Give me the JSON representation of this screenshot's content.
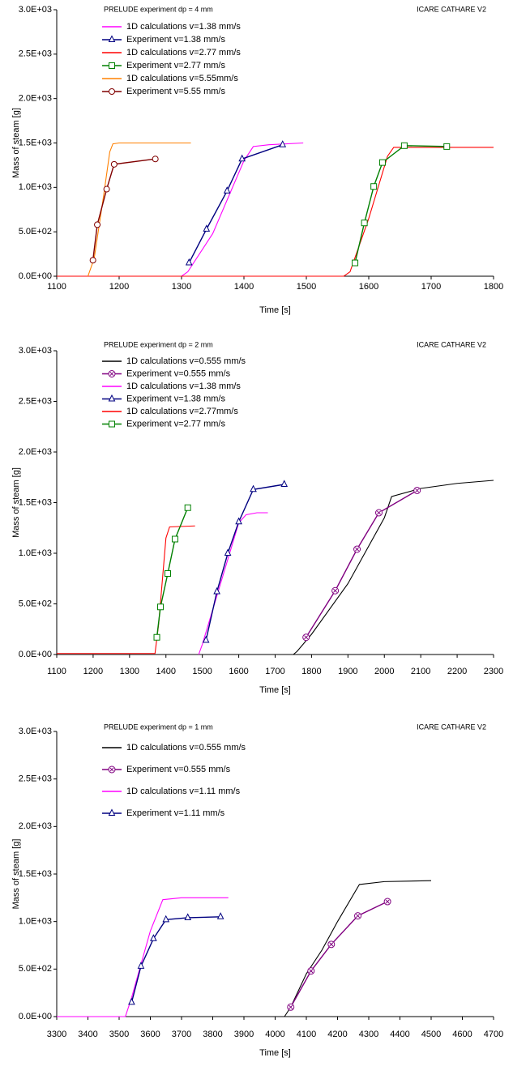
{
  "chart_data": [
    {
      "type": "line",
      "title": "PRELUDE experiment  dp = 4 mm",
      "annotation": "ICARE CATHARE V2",
      "x_label": "Time [s]",
      "y_label": "Mass of steam [g]",
      "xlim": [
        1100,
        1800
      ],
      "xticks": [
        1100,
        1200,
        1300,
        1400,
        1500,
        1600,
        1700,
        1800
      ],
      "ylim": [
        0,
        3000
      ],
      "yticks": [
        {
          "value": 0,
          "label": "0.0E+00"
        },
        {
          "value": 500,
          "label": "5.0E+02"
        },
        {
          "value": 1000,
          "label": "1.0E+03"
        },
        {
          "value": 1500,
          "label": "1.5E+03"
        },
        {
          "value": 2000,
          "label": "2.0E+03"
        },
        {
          "value": 2500,
          "label": "2.5E+03"
        },
        {
          "value": 3000,
          "label": "3.0E+03"
        }
      ],
      "series": [
        {
          "name": "1D calculations v=1.38 mm/s",
          "color": "#ff00ff",
          "x": [
            1300,
            1310,
            1350,
            1400,
            1415,
            1440,
            1495
          ],
          "values": [
            0,
            50,
            480,
            1300,
            1460,
            1480,
            1500
          ]
        },
        {
          "name": "Experiment v=1.38 mm/s",
          "color": "#000080",
          "marker": "triangle",
          "x": [
            1312,
            1340,
            1373,
            1397,
            1462
          ],
          "values": [
            150,
            530,
            960,
            1320,
            1480
          ]
        },
        {
          "name": "1D calculations v=2.77 mm/s",
          "color": "#ff0000",
          "x": [
            1100,
            1560,
            1570,
            1600,
            1630,
            1640,
            1800
          ],
          "values": [
            0,
            0,
            50,
            650,
            1350,
            1450,
            1450
          ]
        },
        {
          "name": "Experiment v=2.77 mm/s",
          "color": "#008000",
          "marker": "square",
          "x": [
            1578,
            1593,
            1608,
            1622,
            1657,
            1725
          ],
          "values": [
            150,
            600,
            1010,
            1280,
            1470,
            1460
          ]
        },
        {
          "name": "1D calculations v=5.55mm/s",
          "color": "#ff8000",
          "x": [
            1150,
            1160,
            1175,
            1185,
            1190,
            1200,
            1315
          ],
          "values": [
            0,
            200,
            900,
            1400,
            1490,
            1500,
            1500
          ]
        },
        {
          "name": "Experiment v=5.55 mm/s",
          "color": "#800000",
          "marker": "circle",
          "x": [
            1158,
            1165,
            1180,
            1192,
            1258
          ],
          "values": [
            180,
            580,
            980,
            1260,
            1320
          ]
        }
      ]
    },
    {
      "type": "line",
      "title": "PRELUDE experiment  dp = 2 mm",
      "annotation": "ICARE CATHARE V2",
      "x_label": "Time [s]",
      "y_label": "Mass of steam [g]",
      "xlim": [
        1100,
        2300
      ],
      "xticks": [
        1100,
        1200,
        1300,
        1400,
        1500,
        1600,
        1700,
        1800,
        1900,
        2000,
        2100,
        2200,
        2300
      ],
      "ylim": [
        0,
        3000
      ],
      "yticks": [
        {
          "value": 0,
          "label": "0.0E+00"
        },
        {
          "value": 500,
          "label": "5.0E+02"
        },
        {
          "value": 1000,
          "label": "1.0E+03"
        },
        {
          "value": 1500,
          "label": "1.5E+03"
        },
        {
          "value": 2000,
          "label": "2.0E+03"
        },
        {
          "value": 2500,
          "label": "2.5E+03"
        },
        {
          "value": 3000,
          "label": "3.0E+03"
        }
      ],
      "series": [
        {
          "name": "1D calculations v=0.555 mm/s",
          "color": "#000000",
          "x": [
            1100,
            1750,
            1760,
            1800,
            1900,
            2000,
            2020,
            2100,
            2200,
            2300
          ],
          "values": [
            0,
            0,
            30,
            200,
            700,
            1350,
            1560,
            1640,
            1690,
            1720
          ]
        },
        {
          "name": "Experiment v=0.555 mm/s",
          "color": "#800080",
          "marker": "circle-x",
          "x": [
            1785,
            1865,
            1925,
            1985,
            2090
          ],
          "values": [
            170,
            630,
            1040,
            1400,
            1620
          ]
        },
        {
          "name": "1D calculations v=1.38 mm/s",
          "color": "#ff00ff",
          "x": [
            1490,
            1500,
            1550,
            1600,
            1620,
            1650,
            1680
          ],
          "values": [
            0,
            100,
            700,
            1300,
            1380,
            1400,
            1400
          ]
        },
        {
          "name": "Experiment v=1.38 mm/s",
          "color": "#000080",
          "marker": "triangle",
          "x": [
            1510,
            1540,
            1570,
            1600,
            1640,
            1725
          ],
          "values": [
            140,
            620,
            1000,
            1310,
            1630,
            1680
          ]
        },
        {
          "name": "1D calculations v=2.77mm/s",
          "color": "#ff0000",
          "x": [
            1100,
            1370,
            1380,
            1400,
            1410,
            1480
          ],
          "values": [
            10,
            10,
            300,
            1150,
            1260,
            1270
          ]
        },
        {
          "name": "Experiment v=2.77 mm/s",
          "color": "#008000",
          "marker": "square",
          "x": [
            1375,
            1385,
            1405,
            1425,
            1460
          ],
          "values": [
            170,
            470,
            800,
            1140,
            1450
          ]
        }
      ]
    },
    {
      "type": "line",
      "title": "PRELUDE experiment  dp = 1 mm",
      "annotation": "ICARE CATHARE V2",
      "x_label": "Time [s]",
      "y_label": "Mass of steam [g]",
      "xlim": [
        3300,
        4700
      ],
      "xticks": [
        3300,
        3400,
        3500,
        3600,
        3700,
        3800,
        3900,
        4000,
        4100,
        4200,
        4300,
        4400,
        4500,
        4600,
        4700
      ],
      "ylim": [
        0,
        3000
      ],
      "yticks": [
        {
          "value": 0,
          "label": "0.0E+00"
        },
        {
          "value": 500,
          "label": "5.0E+02"
        },
        {
          "value": 1000,
          "label": "1.0E+03"
        },
        {
          "value": 1500,
          "label": "1.5E+03"
        },
        {
          "value": 2000,
          "label": "2.0E+03"
        },
        {
          "value": 2500,
          "label": "2.5E+03"
        },
        {
          "value": 3000,
          "label": "3.0E+03"
        }
      ],
      "series": [
        {
          "name": "1D calculations v=0.555 mm/s",
          "color": "#000000",
          "x": [
            4030,
            4050,
            4100,
            4150,
            4200,
            4270,
            4350,
            4500
          ],
          "values": [
            0,
            100,
            450,
            700,
            1000,
            1390,
            1420,
            1430
          ]
        },
        {
          "name": "Experiment v=0.555 mm/s",
          "color": "#800080",
          "marker": "circle-x",
          "x": [
            4050,
            4115,
            4180,
            4265,
            4360
          ],
          "values": [
            100,
            480,
            760,
            1060,
            1210
          ]
        },
        {
          "name": "1D calculations v=1.11 mm/s",
          "color": "#ff00ff",
          "x": [
            3300,
            3520,
            3540,
            3600,
            3640,
            3700,
            3850
          ],
          "values": [
            0,
            0,
            200,
            900,
            1230,
            1250,
            1250
          ]
        },
        {
          "name": "Experiment v=1.11 mm/s",
          "color": "#000080",
          "marker": "triangle",
          "x": [
            3540,
            3570,
            3610,
            3650,
            3720,
            3825
          ],
          "values": [
            150,
            530,
            820,
            1020,
            1040,
            1050
          ]
        }
      ]
    }
  ]
}
